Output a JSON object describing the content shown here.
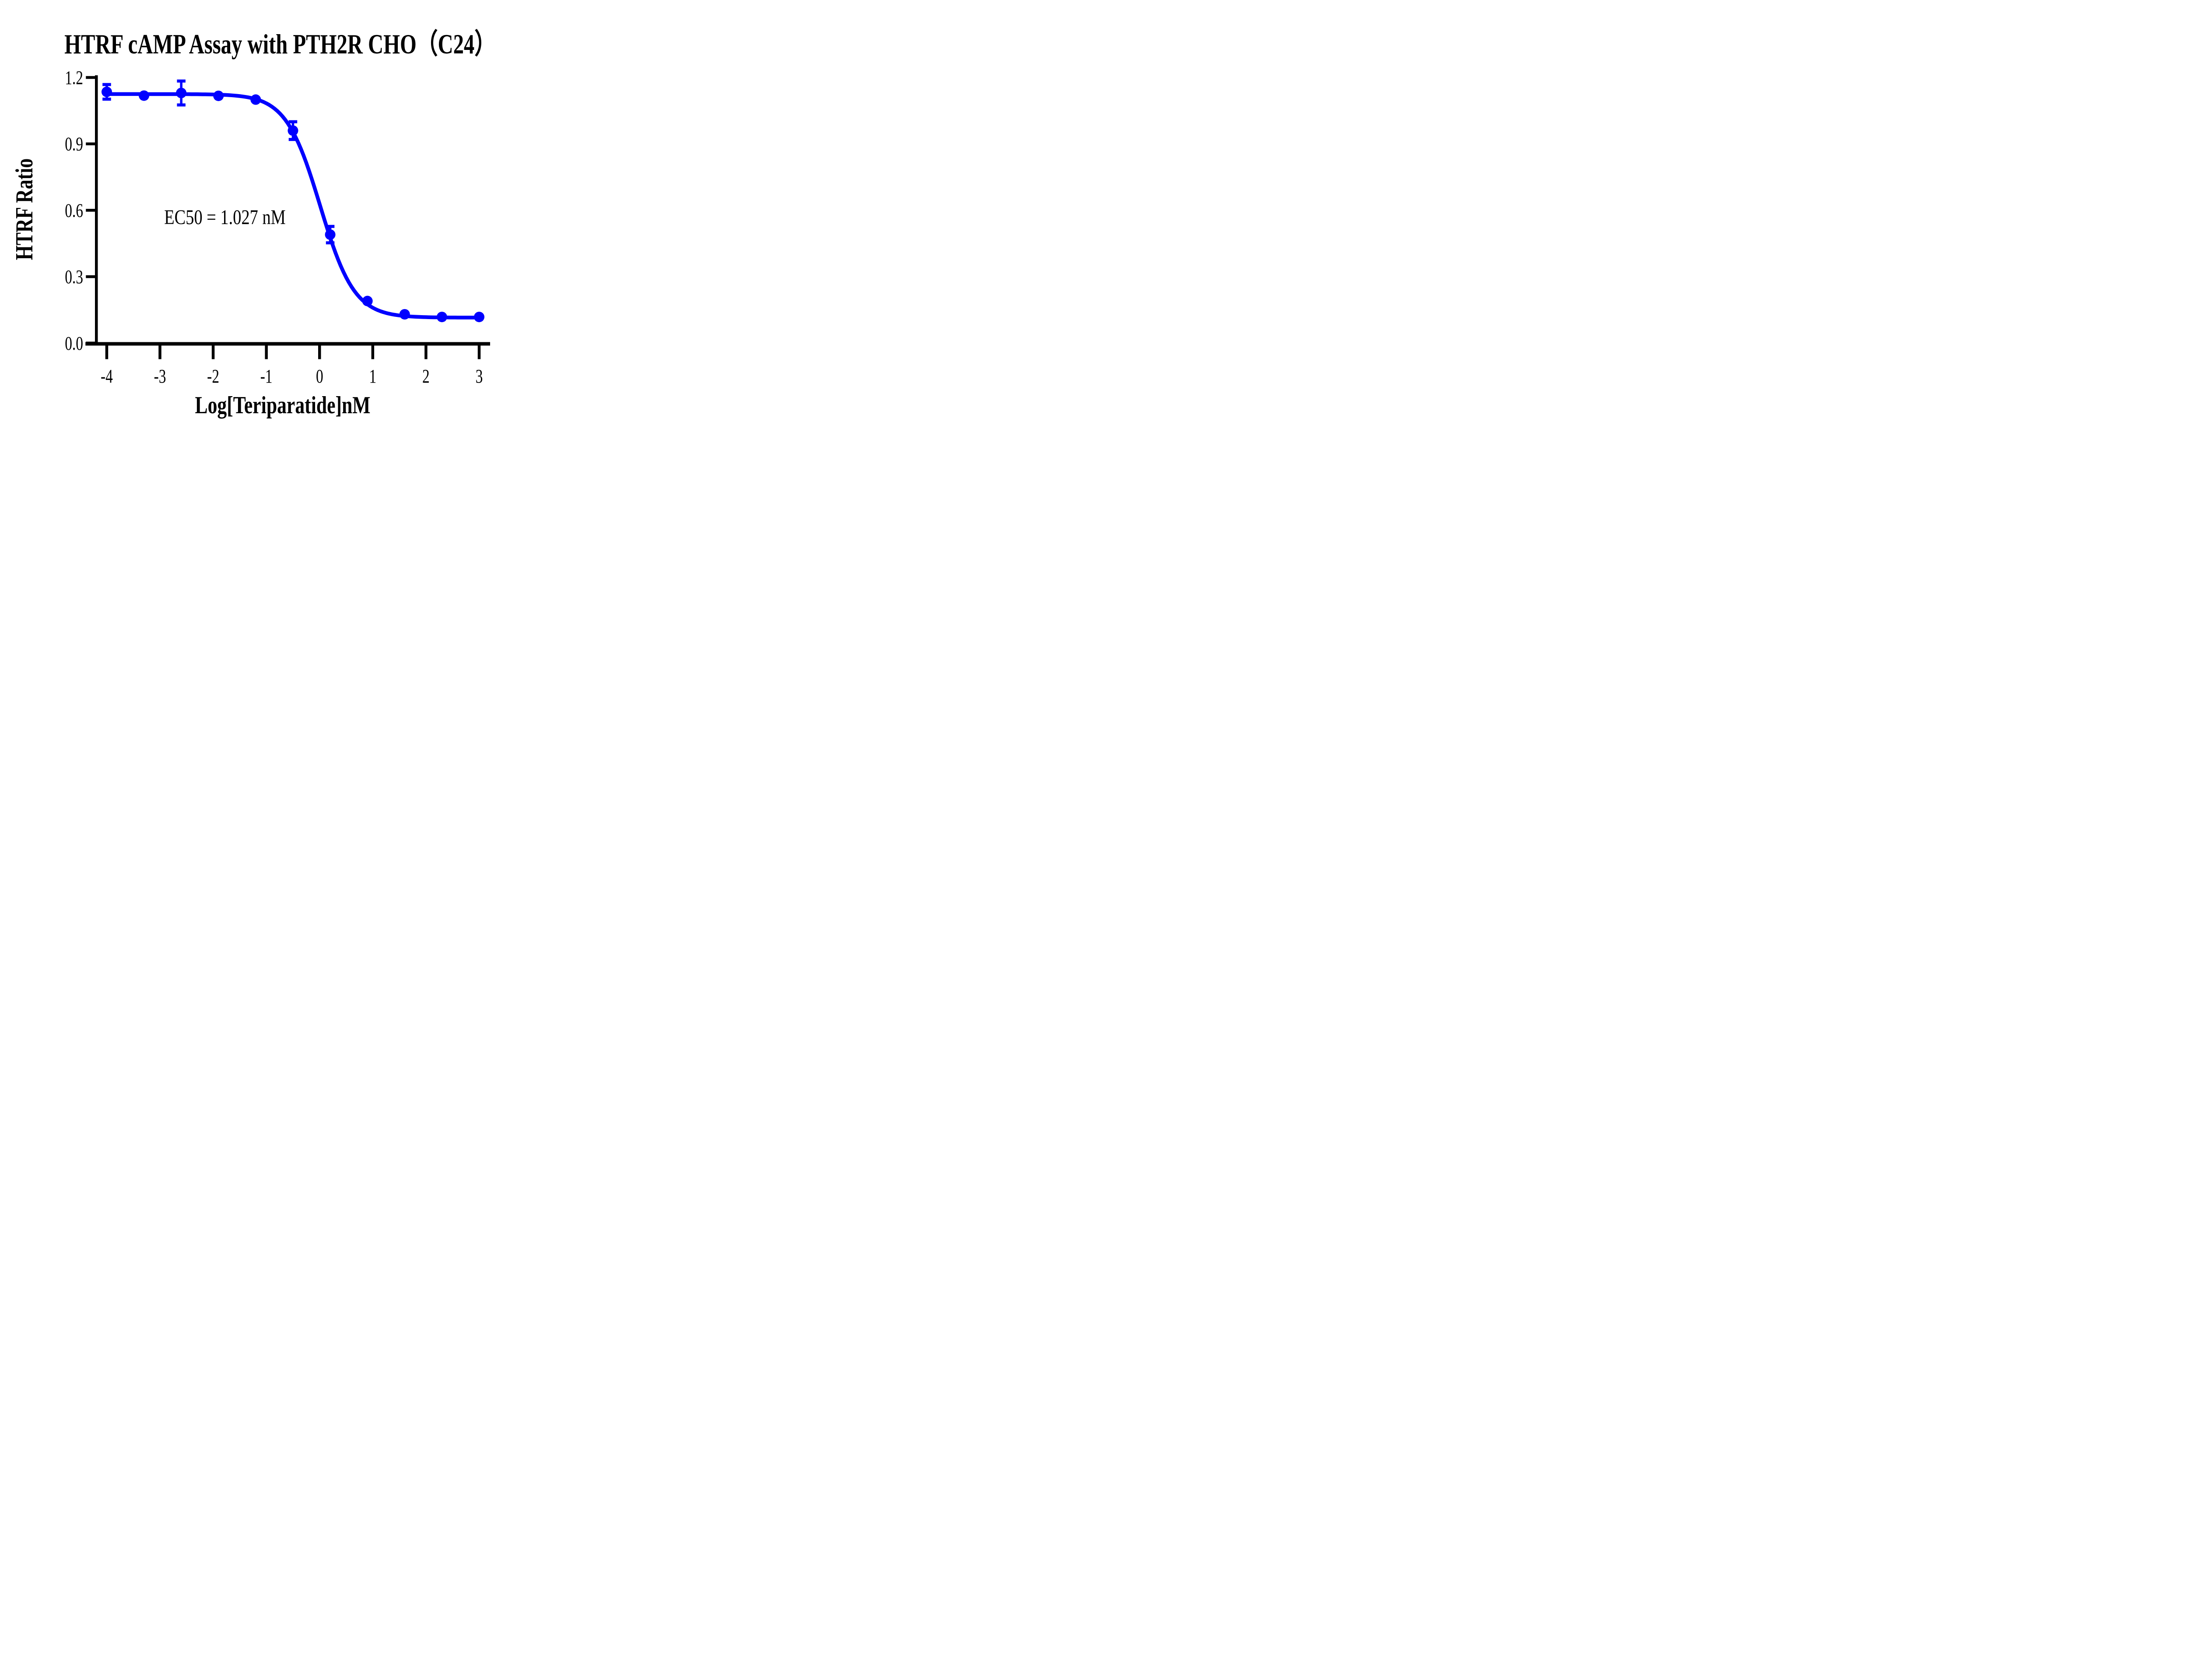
{
  "chart_data": {
    "type": "scatter",
    "title": "HTRF cAMP Assay with PTH2R CHO（C24）",
    "xlabel": "Log[Teriparatide]nM",
    "ylabel": "HTRF Ratio",
    "xlim": [
      -4.4,
      3.2
    ],
    "ylim": [
      0,
      1.2
    ],
    "x_ticks": [
      -4,
      -3,
      -2,
      -1,
      0,
      1,
      2,
      3
    ],
    "x_tick_labels": [
      "-4",
      "-3",
      "-2",
      "-1",
      "0",
      "1",
      "2",
      "3"
    ],
    "y_ticks": [
      0,
      0.3,
      0.6,
      0.9,
      1.2
    ],
    "y_tick_labels": [
      "0.0",
      "0.3",
      "0.6",
      "0.9",
      "1.2"
    ],
    "grid": false,
    "legend": "none",
    "annotation": "EC50 = 1.027 nM",
    "ec50_nM": 1.027,
    "accent_color": "#0000FF",
    "series": [
      {
        "name": "Teriparatide",
        "marker": "circle",
        "color": "#0000FF",
        "x": [
          -4.0,
          -3.3,
          -2.6,
          -1.9,
          -1.2,
          -0.5,
          0.2,
          0.9,
          1.6,
          2.3,
          3.0
        ],
        "y": [
          1.135,
          1.118,
          1.13,
          1.117,
          1.1,
          0.96,
          0.49,
          0.19,
          0.13,
          0.118,
          0.118
        ],
        "sd": [
          0.033,
          0,
          0.054,
          0,
          0,
          0.04,
          0.037,
          0,
          0,
          0,
          0
        ]
      }
    ],
    "fit_curve": {
      "model": "four-parameter logistic",
      "top": 1.125,
      "bottom": 0.115,
      "log_ec50": 0.0116,
      "hill_slope": 1.35,
      "x_range": [
        -4,
        3
      ]
    }
  }
}
